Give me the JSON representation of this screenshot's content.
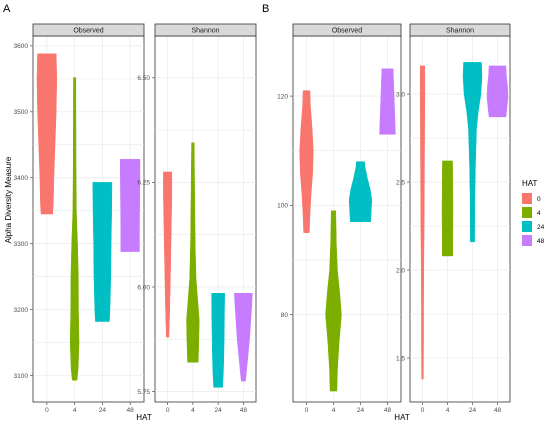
{
  "figure": {
    "labels": [
      "A",
      "B"
    ],
    "ylabel": "Alpha Diversity Measure",
    "xlabel": "HAT"
  },
  "legend": {
    "title": "HAT",
    "entries": [
      {
        "label": "0",
        "color": "#F8766D"
      },
      {
        "label": "4",
        "color": "#7CAE00"
      },
      {
        "label": "24",
        "color": "#00BFC4"
      },
      {
        "label": "48",
        "color": "#C77CFF"
      }
    ]
  },
  "chart_data": [
    {
      "type": "violin",
      "group": "A",
      "facet": "Observed",
      "categories": [
        "0",
        "4",
        "24",
        "48"
      ],
      "ylim": [
        3060,
        3615
      ],
      "yticks": [
        3100,
        3200,
        3300,
        3400,
        3500,
        3600
      ],
      "violins": [
        {
          "category": "0",
          "min": 3345,
          "max": 3588,
          "profile": [
            [
              3345,
              0.5
            ],
            [
              3360,
              0.55
            ],
            [
              3400,
              0.6
            ],
            [
              3450,
              0.7
            ],
            [
              3500,
              0.8
            ],
            [
              3550,
              0.85
            ],
            [
              3588,
              0.8
            ]
          ]
        },
        {
          "category": "4",
          "min": 3093,
          "max": 3552,
          "profile": [
            [
              3093,
              0.2
            ],
            [
              3110,
              0.3
            ],
            [
              3150,
              0.38
            ],
            [
              3200,
              0.33
            ],
            [
              3250,
              0.32
            ],
            [
              3300,
              0.25
            ],
            [
              3350,
              0.15
            ],
            [
              3420,
              0.12
            ],
            [
              3500,
              0.11
            ],
            [
              3552,
              0.1
            ]
          ]
        },
        {
          "category": "24",
          "min": 3182,
          "max": 3393,
          "profile": [
            [
              3182,
              0.6
            ],
            [
              3200,
              0.65
            ],
            [
              3250,
              0.72
            ],
            [
              3300,
              0.75
            ],
            [
              3350,
              0.8
            ],
            [
              3393,
              0.82
            ]
          ]
        },
        {
          "category": "48",
          "min": 3288,
          "max": 3428,
          "profile": [
            [
              3288,
              0.8
            ],
            [
              3320,
              0.8
            ],
            [
              3360,
              0.82
            ],
            [
              3400,
              0.84
            ],
            [
              3428,
              0.85
            ]
          ]
        }
      ]
    },
    {
      "type": "violin",
      "group": "A",
      "facet": "Shannon",
      "categories": [
        "0",
        "4",
        "24",
        "48"
      ],
      "ylim": [
        5.725,
        6.6
      ],
      "yticks": [
        5.75,
        6.0,
        6.25,
        6.5
      ],
      "violins": [
        {
          "category": "0",
          "min": 5.88,
          "max": 6.275,
          "profile": [
            [
              5.88,
              0.12
            ],
            [
              5.95,
              0.2
            ],
            [
              6.05,
              0.28
            ],
            [
              6.15,
              0.35
            ],
            [
              6.22,
              0.4
            ],
            [
              6.275,
              0.4
            ]
          ]
        },
        {
          "category": "4",
          "min": 5.82,
          "max": 6.345,
          "profile": [
            [
              5.82,
              0.5
            ],
            [
              5.86,
              0.55
            ],
            [
              5.92,
              0.6
            ],
            [
              5.97,
              0.45
            ],
            [
              6.02,
              0.3
            ],
            [
              6.1,
              0.22
            ],
            [
              6.2,
              0.18
            ],
            [
              6.3,
              0.14
            ],
            [
              6.345,
              0.12
            ]
          ]
        },
        {
          "category": "24",
          "min": 5.76,
          "max": 5.985,
          "profile": [
            [
              5.76,
              0.42
            ],
            [
              5.8,
              0.5
            ],
            [
              5.85,
              0.55
            ],
            [
              5.9,
              0.58
            ],
            [
              5.95,
              0.6
            ],
            [
              5.985,
              0.62
            ]
          ]
        },
        {
          "category": "48",
          "min": 5.775,
          "max": 5.985,
          "profile": [
            [
              5.775,
              0.2
            ],
            [
              5.8,
              0.3
            ],
            [
              5.84,
              0.45
            ],
            [
              5.88,
              0.6
            ],
            [
              5.92,
              0.7
            ],
            [
              5.96,
              0.8
            ],
            [
              5.985,
              0.85
            ]
          ]
        }
      ]
    },
    {
      "type": "violin",
      "group": "B",
      "facet": "Observed",
      "categories": [
        "0",
        "4",
        "24",
        "48"
      ],
      "ylim": [
        64,
        131
      ],
      "yticks": [
        80,
        100,
        120
      ],
      "violins": [
        {
          "category": "0",
          "min": 95,
          "max": 121,
          "profile": [
            [
              95,
              0.25
            ],
            [
              98,
              0.3
            ],
            [
              102,
              0.4
            ],
            [
              106,
              0.55
            ],
            [
              110,
              0.6
            ],
            [
              114,
              0.5
            ],
            [
              118,
              0.35
            ],
            [
              121,
              0.3
            ]
          ]
        },
        {
          "category": "4",
          "min": 66,
          "max": 99,
          "profile": [
            [
              66,
              0.3
            ],
            [
              70,
              0.35
            ],
            [
              75,
              0.5
            ],
            [
              80,
              0.7
            ],
            [
              84,
              0.55
            ],
            [
              88,
              0.35
            ],
            [
              93,
              0.25
            ],
            [
              99,
              0.2
            ]
          ]
        },
        {
          "category": "24",
          "min": 97,
          "max": 108,
          "profile": [
            [
              97,
              0.9
            ],
            [
              99,
              0.95
            ],
            [
              101,
              1.0
            ],
            [
              103,
              0.85
            ],
            [
              105,
              0.6
            ],
            [
              107,
              0.4
            ],
            [
              108,
              0.35
            ]
          ]
        },
        {
          "category": "48",
          "min": 113,
          "max": 125,
          "profile": [
            [
              113,
              0.7
            ],
            [
              116,
              0.65
            ],
            [
              119,
              0.6
            ],
            [
              122,
              0.55
            ],
            [
              125,
              0.5
            ]
          ]
        }
      ]
    },
    {
      "type": "violin",
      "group": "B",
      "facet": "Shannon",
      "categories": [
        "0",
        "4",
        "24",
        "48"
      ],
      "ylim": [
        1.25,
        3.33
      ],
      "yticks": [
        1.5,
        2.0,
        2.5,
        3.0
      ],
      "violins": [
        {
          "category": "0",
          "min": 1.38,
          "max": 3.16,
          "profile": [
            [
              1.38,
              0.08
            ],
            [
              1.6,
              0.1
            ],
            [
              1.8,
              0.1
            ],
            [
              2.0,
              0.12
            ],
            [
              2.2,
              0.15
            ],
            [
              2.5,
              0.18
            ],
            [
              2.8,
              0.2
            ],
            [
              3.0,
              0.22
            ],
            [
              3.16,
              0.22
            ]
          ]
        },
        {
          "category": "4",
          "min": 2.08,
          "max": 2.62,
          "profile": [
            [
              2.08,
              0.5
            ],
            [
              2.2,
              0.5
            ],
            [
              2.35,
              0.52
            ],
            [
              2.5,
              0.5
            ],
            [
              2.62,
              0.48
            ]
          ]
        },
        {
          "category": "24",
          "min": 2.16,
          "max": 3.18,
          "profile": [
            [
              2.16,
              0.2
            ],
            [
              2.4,
              0.22
            ],
            [
              2.6,
              0.28
            ],
            [
              2.8,
              0.38
            ],
            [
              2.9,
              0.55
            ],
            [
              3.0,
              0.8
            ],
            [
              3.1,
              0.9
            ],
            [
              3.18,
              0.85
            ]
          ]
        },
        {
          "category": "48",
          "min": 2.87,
          "max": 3.16,
          "profile": [
            [
              2.87,
              0.8
            ],
            [
              2.92,
              0.9
            ],
            [
              2.98,
              1.0
            ],
            [
              3.05,
              0.95
            ],
            [
              3.1,
              0.85
            ],
            [
              3.16,
              0.8
            ]
          ]
        }
      ]
    }
  ]
}
